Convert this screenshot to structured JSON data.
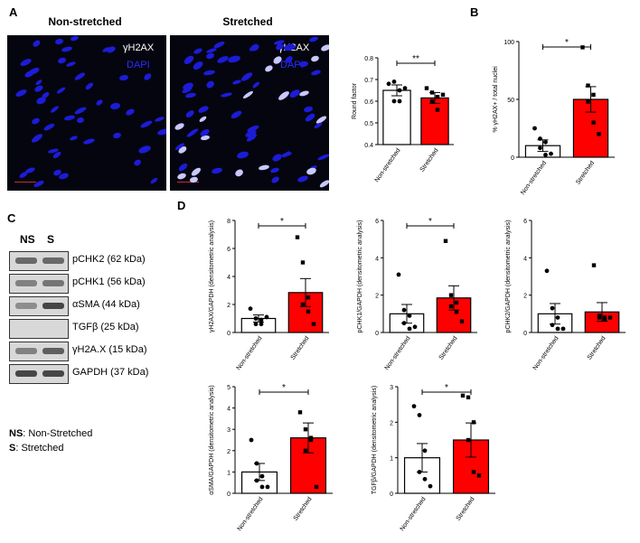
{
  "panels": {
    "a": "A",
    "b": "B",
    "c": "C",
    "d": "D"
  },
  "images": {
    "left_title": "Non-stretched",
    "right_title": "Stretched",
    "label_h2ax": "γH2AX",
    "label_dapi": "DAPI"
  },
  "blot": {
    "col_ns": "NS",
    "col_s": "S",
    "rows": [
      {
        "label": "pCHK2 (62 kDa)",
        "ns": 0.6,
        "s": 0.6
      },
      {
        "label": "pCHK1 (56 kDa)",
        "ns": 0.4,
        "s": 0.5
      },
      {
        "label": "αSMA (44 kDa)",
        "ns": 0.3,
        "s": 0.9
      },
      {
        "label": "TGFβ (25 kDa)",
        "ns": 0.0,
        "s": 0.0
      },
      {
        "label": "γH2A.X (15 kDa)",
        "ns": 0.4,
        "s": 0.7
      },
      {
        "label": "GAPDH (37 kDa)",
        "ns": 0.9,
        "s": 0.9
      }
    ],
    "legend": [
      {
        "key": "NS",
        "text": ": Non-Stretched"
      },
      {
        "key": "S",
        "text": ": Stretched"
      }
    ]
  },
  "colors": {
    "control_fill": "#ffffff",
    "stretched_fill": "#ff0000",
    "bar_stroke": "#000000"
  },
  "chart_data": [
    {
      "id": "round-factor",
      "type": "bar",
      "categories": [
        "Non-stretched",
        "Stretched"
      ],
      "values": [
        0.65,
        0.615
      ],
      "errors": [
        0.025,
        0.025
      ],
      "points": [
        [
          0.68,
          0.69,
          0.65,
          0.6,
          0.6,
          0.66
        ],
        [
          0.66,
          0.64,
          0.62,
          0.6,
          0.56,
          0.63
        ]
      ],
      "ylabel": "Round factor",
      "ylim": [
        0.4,
        0.8
      ],
      "yticks": [
        0.4,
        0.5,
        0.6,
        0.7,
        0.8
      ],
      "significance": "**"
    },
    {
      "id": "h2ax-percent",
      "type": "bar",
      "categories": [
        "Non-stretched",
        "Stretched"
      ],
      "values": [
        10,
        50
      ],
      "errors": [
        5,
        11
      ],
      "points": [
        [
          25,
          16,
          13,
          8,
          2,
          3
        ],
        [
          95,
          62,
          54,
          48,
          30,
          20
        ]
      ],
      "ylabel": "% γH2AX+ / total nuclei",
      "ylim": [
        0,
        100
      ],
      "yticks": [
        0,
        50,
        100
      ],
      "significance": "*"
    },
    {
      "id": "gh2ax-gapdh",
      "type": "bar",
      "categories": [
        "Non-stretched",
        "Stretched"
      ],
      "values": [
        1.0,
        2.85
      ],
      "errors": [
        0.25,
        1.0
      ],
      "points": [
        [
          1.7,
          1.0,
          0.9,
          0.6,
          0.6,
          1.1
        ],
        [
          6.8,
          5.0,
          2.5,
          2.0,
          1.5,
          0.6
        ]
      ],
      "ylabel": "γH2AX/GAPDH (densitometric analysis)",
      "ylim": [
        0,
        8
      ],
      "yticks": [
        0,
        2,
        4,
        6,
        8
      ],
      "significance": "*"
    },
    {
      "id": "pchk1-gapdh",
      "type": "bar",
      "categories": [
        "Non-stretched",
        "Stretched"
      ],
      "values": [
        1.0,
        1.85
      ],
      "errors": [
        0.5,
        0.65
      ],
      "points": [
        [
          3.1,
          1.2,
          0.9,
          0.5,
          0.2,
          0.3
        ],
        [
          4.9,
          2.0,
          1.6,
          1.4,
          1.1,
          0.6
        ]
      ],
      "ylabel": "pCHK1/GAPDH (densitometric analysis)",
      "ylim": [
        0,
        6
      ],
      "yticks": [
        0,
        2,
        4,
        6
      ],
      "significance": "*"
    },
    {
      "id": "pchk2-gapdh",
      "type": "bar",
      "categories": [
        "Non-stretched",
        "Stretched"
      ],
      "values": [
        1.0,
        1.1
      ],
      "errors": [
        0.55,
        0.5
      ],
      "points": [
        [
          3.3,
          1.3,
          0.8,
          0.4,
          0.2,
          0.2
        ],
        [
          3.6,
          0.9,
          0.8,
          0.8,
          0.7,
          0.8
        ]
      ],
      "ylabel": "pCHK2/GAPDH (densitometric analysis)",
      "ylim": [
        0,
        6
      ],
      "yticks": [
        0,
        2,
        4,
        6
      ],
      "significance": ""
    },
    {
      "id": "asma-gapdh",
      "type": "bar",
      "categories": [
        "Non-stretched",
        "Stretched"
      ],
      "values": [
        1.0,
        2.6
      ],
      "errors": [
        0.4,
        0.7
      ],
      "points": [
        [
          2.5,
          1.4,
          0.8,
          0.6,
          0.3,
          0.3
        ],
        [
          3.8,
          3.0,
          2.6,
          2.0,
          2.5,
          0.3
        ]
      ],
      "ylabel": "αSMA/GAPDH (densitometric analysis)",
      "ylim": [
        0,
        5
      ],
      "yticks": [
        0,
        1,
        2,
        3,
        4,
        5
      ],
      "significance": "*"
    },
    {
      "id": "tgfb-gapdh",
      "type": "bar",
      "categories": [
        "Non-stretched",
        "Stretched"
      ],
      "values": [
        1.0,
        1.5
      ],
      "errors": [
        0.4,
        0.48
      ],
      "points": [
        [
          2.45,
          2.2,
          1.2,
          0.6,
          0.4,
          0.2
        ],
        [
          2.75,
          2.7,
          2.0,
          1.5,
          0.6,
          0.5
        ]
      ],
      "ylabel": "TGFβ/GAPDH (densitometric analysis)",
      "ylim": [
        0,
        3
      ],
      "yticks": [
        0,
        1,
        2,
        3
      ],
      "significance": "*"
    }
  ]
}
